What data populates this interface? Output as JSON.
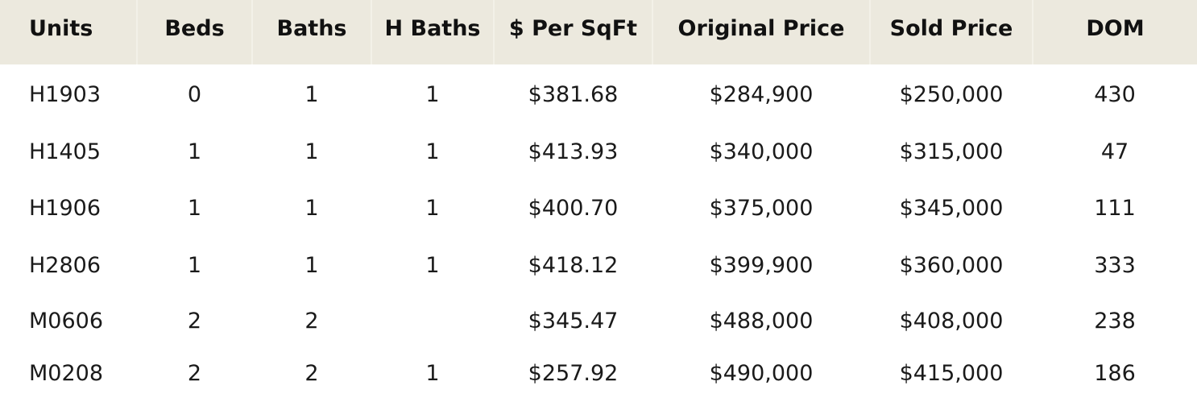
{
  "table": {
    "headers": [
      "Units",
      "Beds",
      "Baths",
      "H Baths",
      "$ Per SqFt",
      "Original Price",
      "Sold Price",
      "DOM"
    ],
    "rows": [
      [
        "H1903",
        "0",
        "1",
        "1",
        "$381.68",
        "$284,900",
        "$250,000",
        "430"
      ],
      [
        "H1405",
        "1",
        "1",
        "1",
        "$413.93",
        "$340,000",
        "$315,000",
        "47"
      ],
      [
        "H1906",
        "1",
        "1",
        "1",
        "$400.70",
        "$375,000",
        "$345,000",
        "111"
      ],
      [
        "H2806",
        "1",
        "1",
        "1",
        "$418.12",
        "$399,900",
        "$360,000",
        "333"
      ],
      [
        "M0606",
        "2",
        "2",
        "",
        "$345.47",
        "$488,000",
        "$408,000",
        "238"
      ],
      [
        "M0208",
        "2",
        "2",
        "1",
        "$257.92",
        "$490,000",
        "$415,000",
        "186"
      ]
    ]
  },
  "colors": {
    "header_background": "#ece9de",
    "text": "#1a1a1a"
  }
}
